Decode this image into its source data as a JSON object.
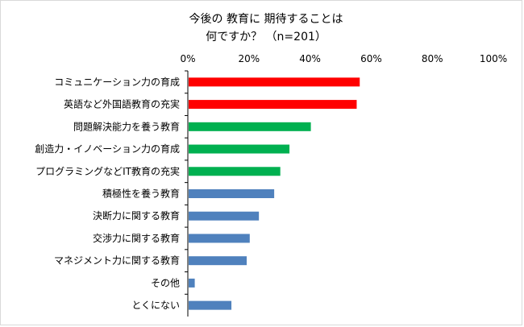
{
  "chart_data": {
    "type": "bar",
    "orientation": "horizontal",
    "title_lines": [
      "今後の 教育に 期待することは",
      "何ですか？ （n=201）"
    ],
    "x_ticks": [
      "0%",
      "20%",
      "40%",
      "60%",
      "80%",
      "100%"
    ],
    "xlim": [
      0,
      100
    ],
    "x_axis_position": "top",
    "grid": false,
    "categories": [
      "コミュニケーション力の育成",
      "英語など外国語教育の充実",
      "問題解決能力を養う教育",
      "創造力・イノベーション力の育成",
      "プログラミングなどIT教育の充実",
      "積極性を養う教育",
      "決断力に関する教育",
      "交渉力に関する教育",
      "マネジメント力に関する教育",
      "その他",
      "とくにない"
    ],
    "values": [
      56,
      55,
      40,
      33,
      30,
      28,
      23,
      20,
      19,
      2,
      14
    ],
    "bar_colors": [
      "#ff0000",
      "#ff0000",
      "#00b050",
      "#00b050",
      "#00b050",
      "#4f81bd",
      "#4f81bd",
      "#4f81bd",
      "#4f81bd",
      "#4f81bd",
      "#4f81bd"
    ]
  }
}
